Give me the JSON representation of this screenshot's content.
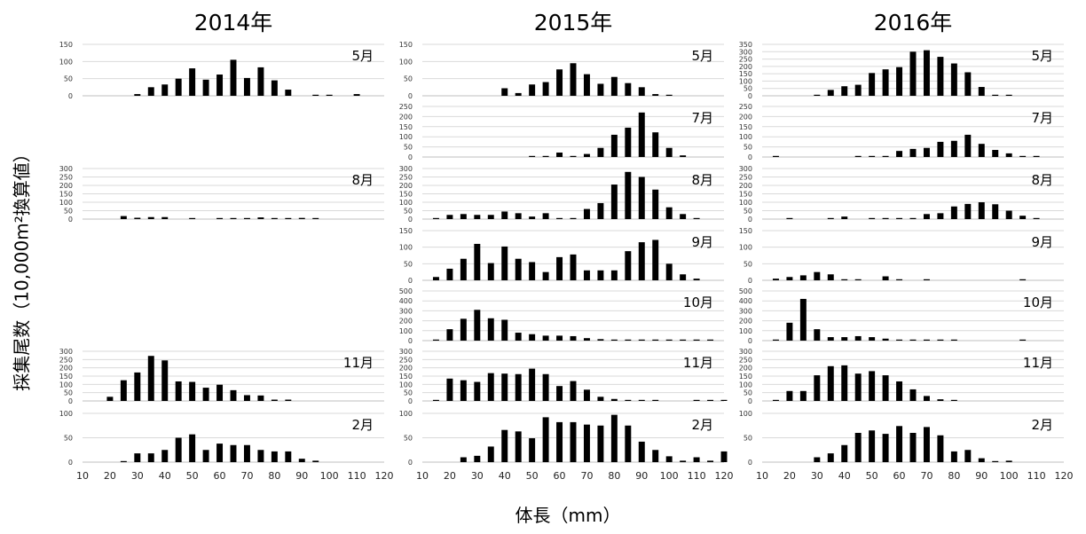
{
  "page": {
    "xlabel": "体長（mm）",
    "ylabel": "採集尾数（10,000m²換算値）"
  },
  "chart_data": {
    "type": "bar",
    "x": [
      10,
      15,
      20,
      25,
      30,
      35,
      40,
      45,
      50,
      55,
      60,
      65,
      70,
      75,
      80,
      85,
      90,
      95,
      100,
      105,
      110,
      115,
      120
    ],
    "x_ticks": [
      "10",
      "20",
      "30",
      "40",
      "50",
      "60",
      "70",
      "80",
      "90",
      "100",
      "110",
      "120"
    ],
    "xlabel": "体長（mm）",
    "ylabel": "採集尾数（10,000m²換算値）",
    "years": [
      {
        "year": "2014年",
        "panels": [
          {
            "month": "5月",
            "ylim": [
              0,
              150
            ],
            "yticks": [
              0,
              50,
              100,
              150
            ],
            "values": [
              0,
              0,
              0,
              0,
              5,
              25,
              33,
              50,
              80,
              47,
              62,
              105,
              52,
              83,
              45,
              18,
              0,
              2,
              2,
              0,
              5,
              0,
              0
            ]
          },
          {
            "month": "8月",
            "ylim": [
              0,
              300
            ],
            "yticks": [
              0,
              50,
              100,
              150,
              200,
              250,
              300
            ],
            "values": [
              0,
              0,
              0,
              18,
              8,
              12,
              12,
              0,
              5,
              0,
              3,
              5,
              5,
              10,
              3,
              3,
              7,
              5,
              0,
              0,
              0,
              0,
              0
            ]
          },
          {
            "month": "11月",
            "ylim": [
              0,
              300
            ],
            "yticks": [
              0,
              50,
              100,
              150,
              200,
              250,
              300
            ],
            "values": [
              0,
              0,
              25,
              125,
              172,
              272,
              245,
              118,
              115,
              80,
              98,
              65,
              35,
              33,
              8,
              8,
              0,
              0,
              0,
              0,
              0,
              0,
              0
            ]
          },
          {
            "month": "2月",
            "ylim": [
              0,
              100
            ],
            "yticks": [
              0,
              50,
              100
            ],
            "values": [
              0,
              0,
              0,
              2,
              18,
              18,
              25,
              50,
              57,
              25,
              38,
              35,
              35,
              25,
              22,
              22,
              7,
              3,
              0,
              0,
              0,
              0,
              0
            ]
          }
        ]
      },
      {
        "year": "2015年",
        "panels": [
          {
            "month": "5月",
            "ylim": [
              0,
              150
            ],
            "yticks": [
              0,
              50,
              100,
              150
            ],
            "values": [
              0,
              0,
              0,
              0,
              0,
              0,
              22,
              8,
              33,
              40,
              77,
              95,
              63,
              35,
              55,
              37,
              25,
              5,
              2,
              0,
              0,
              0,
              0
            ]
          },
          {
            "month": "7月",
            "ylim": [
              0,
              250
            ],
            "yticks": [
              0,
              50,
              100,
              150,
              200,
              250
            ],
            "values": [
              0,
              0,
              0,
              0,
              0,
              0,
              0,
              0,
              3,
              3,
              22,
              5,
              15,
              45,
              110,
              145,
              220,
              122,
              45,
              8,
              0,
              0,
              0
            ]
          },
          {
            "month": "8月",
            "ylim": [
              0,
              300
            ],
            "yticks": [
              0,
              50,
              100,
              150,
              200,
              250,
              300
            ],
            "values": [
              0,
              5,
              25,
              30,
              25,
              25,
              45,
              35,
              15,
              35,
              5,
              5,
              60,
              95,
              205,
              280,
              250,
              175,
              70,
              30,
              5,
              0,
              0
            ]
          },
          {
            "month": "9月",
            "ylim": [
              0,
              150
            ],
            "yticks": [
              0,
              50,
              100,
              150
            ],
            "values": [
              0,
              10,
              35,
              65,
              110,
              52,
              102,
              65,
              55,
              25,
              70,
              78,
              30,
              30,
              30,
              88,
              115,
              122,
              50,
              18,
              5,
              0,
              0
            ]
          },
          {
            "month": "10月",
            "ylim": [
              0,
              500
            ],
            "yticks": [
              0,
              100,
              200,
              300,
              400,
              500
            ],
            "values": [
              0,
              10,
              115,
              220,
              310,
              225,
              210,
              80,
              65,
              50,
              50,
              45,
              25,
              15,
              10,
              5,
              2,
              5,
              5,
              10,
              5,
              2,
              0
            ]
          },
          {
            "month": "11月",
            "ylim": [
              0,
              300
            ],
            "yticks": [
              0,
              50,
              100,
              150,
              200,
              250,
              300
            ],
            "values": [
              0,
              5,
              135,
              125,
              115,
              168,
              165,
              162,
              195,
              162,
              90,
              120,
              68,
              25,
              12,
              5,
              5,
              5,
              0,
              0,
              5,
              2,
              5
            ]
          },
          {
            "month": "2月",
            "ylim": [
              0,
              100
            ],
            "yticks": [
              0,
              50,
              100
            ],
            "values": [
              0,
              0,
              0,
              10,
              13,
              32,
              66,
              63,
              49,
              92,
              82,
              82,
              77,
              75,
              97,
              75,
              42,
              25,
              12,
              3,
              10,
              3,
              22
            ]
          }
        ]
      },
      {
        "year": "2016年",
        "panels": [
          {
            "month": "5月",
            "ylim": [
              0,
              350
            ],
            "yticks": [
              0,
              50,
              100,
              150,
              200,
              250,
              300,
              350
            ],
            "values": [
              0,
              0,
              0,
              0,
              5,
              40,
              65,
              75,
              155,
              180,
              195,
              300,
              310,
              265,
              220,
              160,
              60,
              5,
              3,
              0,
              0,
              0,
              0
            ]
          },
          {
            "month": "7月",
            "ylim": [
              0,
              250
            ],
            "yticks": [
              0,
              50,
              100,
              150,
              200,
              250
            ],
            "values": [
              0,
              3,
              0,
              0,
              0,
              0,
              0,
              3,
              5,
              5,
              30,
              40,
              45,
              75,
              80,
              110,
              65,
              35,
              18,
              5,
              5,
              0,
              0
            ]
          },
          {
            "month": "8月",
            "ylim": [
              0,
              300
            ],
            "yticks": [
              0,
              50,
              100,
              150,
              200,
              250,
              300
            ],
            "values": [
              0,
              0,
              5,
              0,
              0,
              5,
              15,
              0,
              5,
              5,
              5,
              5,
              30,
              35,
              75,
              90,
              100,
              88,
              50,
              20,
              5,
              0,
              0
            ]
          },
          {
            "month": "9月",
            "ylim": [
              0,
              150
            ],
            "yticks": [
              0,
              50,
              100,
              150
            ],
            "values": [
              0,
              5,
              10,
              15,
              25,
              18,
              3,
              3,
              0,
              12,
              3,
              0,
              3,
              0,
              0,
              0,
              0,
              0,
              0,
              3,
              0,
              0,
              0
            ]
          },
          {
            "month": "10月",
            "ylim": [
              0,
              500
            ],
            "yticks": [
              0,
              100,
              200,
              300,
              400,
              500
            ],
            "values": [
              0,
              10,
              180,
              420,
              115,
              35,
              35,
              45,
              35,
              20,
              10,
              5,
              5,
              5,
              5,
              0,
              0,
              0,
              0,
              3,
              0,
              0,
              0
            ]
          },
          {
            "month": "11月",
            "ylim": [
              0,
              300
            ],
            "yticks": [
              0,
              50,
              100,
              150,
              200,
              250,
              300
            ],
            "values": [
              0,
              5,
              60,
              60,
              155,
              210,
              215,
              165,
              180,
              155,
              118,
              70,
              30,
              10,
              5,
              0,
              0,
              0,
              0,
              0,
              0,
              0,
              0
            ]
          },
          {
            "month": "2月",
            "ylim": [
              0,
              100
            ],
            "yticks": [
              0,
              50,
              100
            ],
            "values": [
              0,
              0,
              0,
              0,
              10,
              18,
              35,
              60,
              65,
              58,
              74,
              60,
              72,
              55,
              22,
              25,
              8,
              2,
              3,
              0,
              0,
              0,
              0
            ]
          }
        ]
      }
    ]
  }
}
